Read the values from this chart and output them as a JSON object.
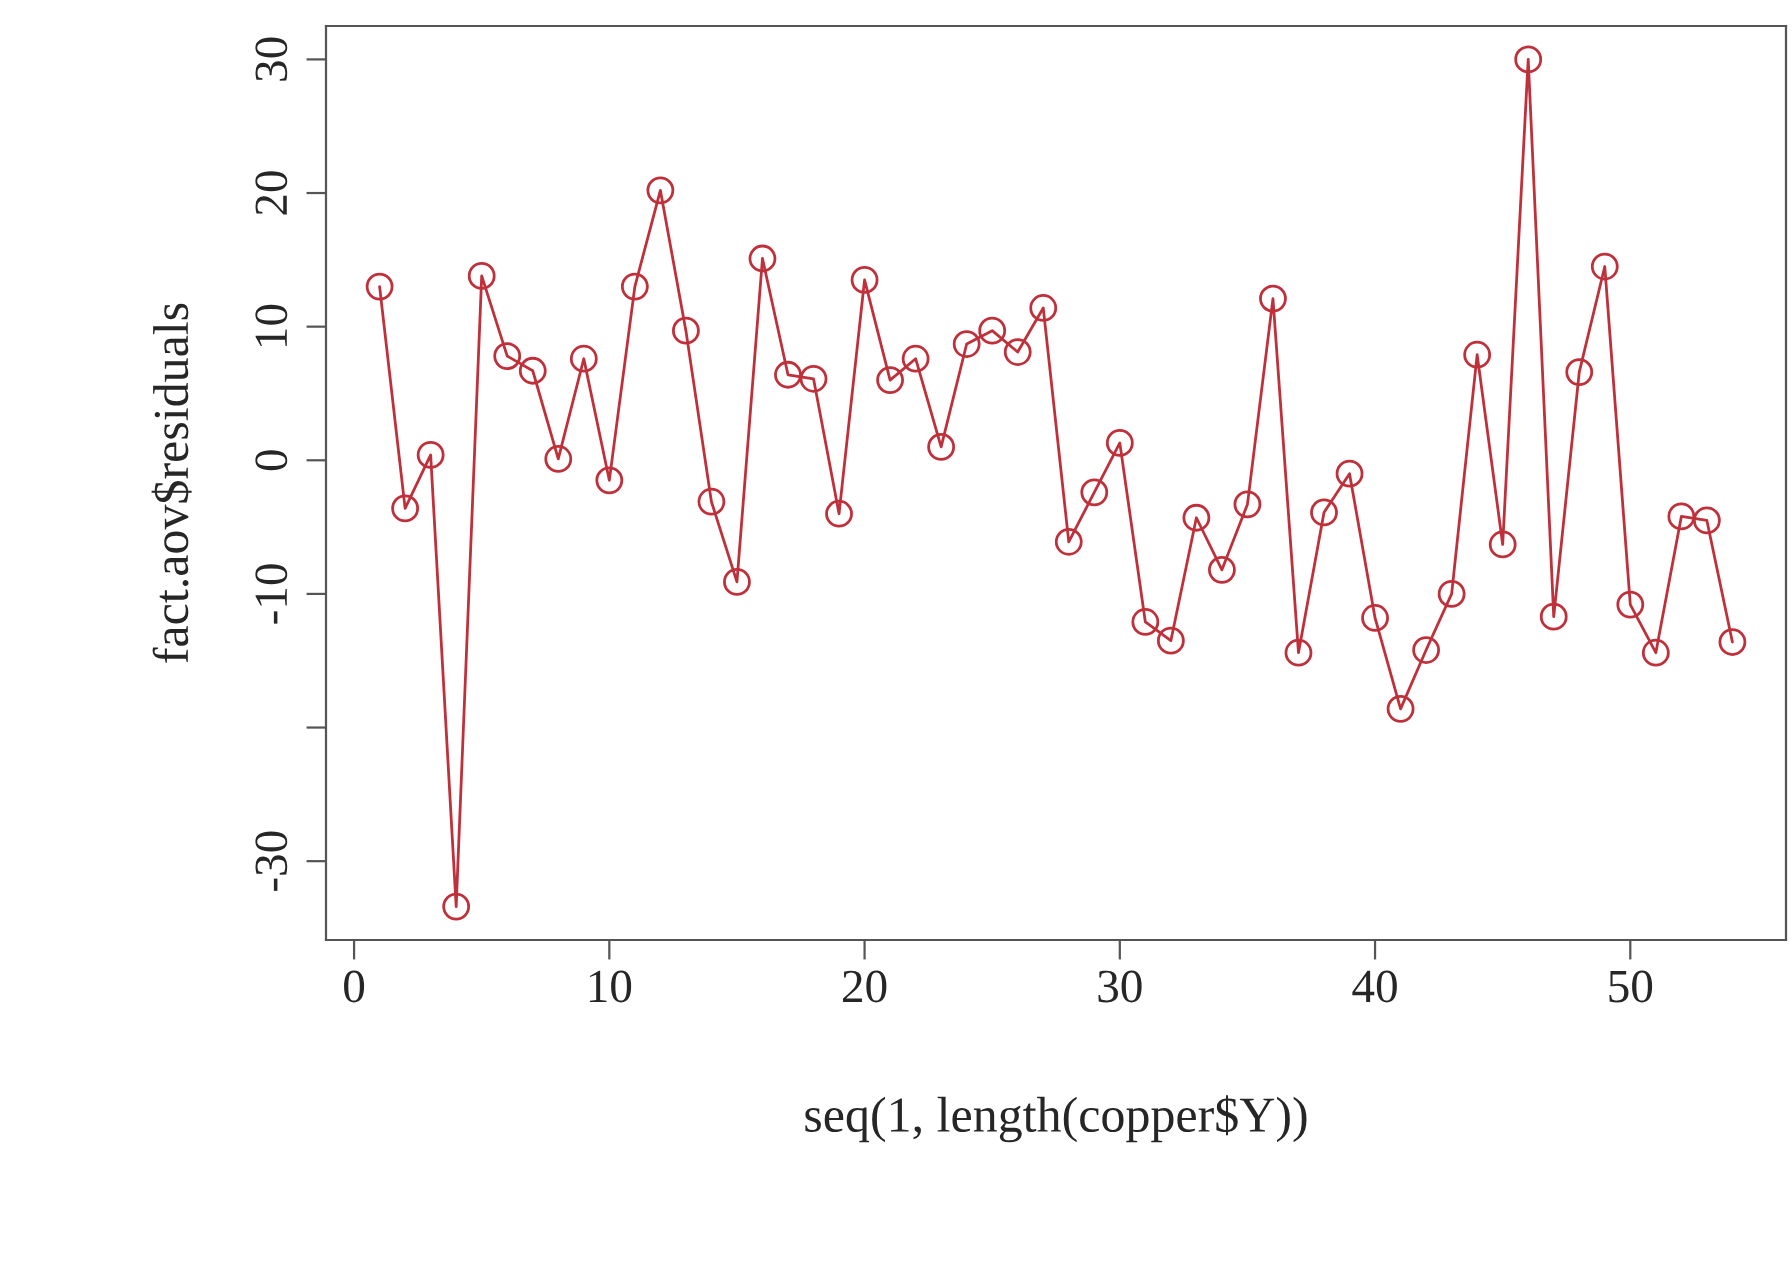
{
  "chart_data": {
    "type": "line",
    "xlabel": "seq(1, length(copper$Y))",
    "ylabel": "fact.aov$residuals",
    "x": [
      1,
      2,
      3,
      4,
      5,
      6,
      7,
      8,
      9,
      10,
      11,
      12,
      13,
      14,
      15,
      16,
      17,
      18,
      19,
      20,
      21,
      22,
      23,
      24,
      25,
      26,
      27,
      28,
      29,
      30,
      31,
      32,
      33,
      34,
      35,
      36,
      37,
      38,
      39,
      40,
      41,
      42,
      43,
      44,
      45,
      46,
      47,
      48,
      49,
      50,
      51,
      52,
      53,
      54
    ],
    "series": [
      {
        "color": "#c0303a",
        "values": [
          13.0,
          -3.6,
          0.4,
          -33.4,
          13.8,
          7.8,
          6.7,
          0.1,
          7.6,
          -1.5,
          13.0,
          20.2,
          9.7,
          -3.1,
          -9.1,
          15.1,
          6.4,
          6.1,
          -4.0,
          13.5,
          6.0,
          7.6,
          1.0,
          8.7,
          9.7,
          8.1,
          11.4,
          -6.1,
          -2.4,
          1.3,
          -12.1,
          -13.5,
          -4.3,
          -8.2,
          -3.3,
          12.1,
          -14.4,
          -3.9,
          -1.0,
          -11.8,
          -18.6,
          -14.2,
          -10.0,
          7.9,
          -6.3,
          30.0,
          -11.7,
          6.6,
          14.5,
          -10.8,
          -14.4,
          -4.2,
          -4.5,
          -13.6
        ]
      }
    ],
    "xlim": [
      -1.1,
      56.1
    ],
    "ylim": [
      -35.9,
      32.5
    ],
    "xticks": [
      0,
      10,
      20,
      30,
      40,
      50
    ],
    "yticks": [
      -30,
      {
        "value": -20,
        "label": null
      },
      -10,
      0,
      10,
      20,
      30
    ],
    "marker": "circle",
    "line_style": "solid",
    "grid": false,
    "legend": false
  }
}
